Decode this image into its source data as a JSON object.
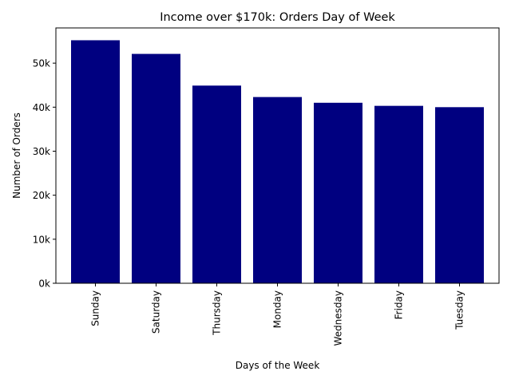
{
  "chart_data": {
    "type": "bar",
    "title": "Income over $170k: Orders Day of Week",
    "xlabel": "Days of the Week",
    "ylabel": "Number of Orders",
    "categories": [
      "Sunday",
      "Saturday",
      "Thursday",
      "Monday",
      "Wednesday",
      "Friday",
      "Tuesday"
    ],
    "values": [
      55200,
      52100,
      44900,
      42300,
      41000,
      40300,
      40000
    ],
    "ylim": [
      0,
      58000
    ],
    "yticks": [
      0,
      10000,
      20000,
      30000,
      40000,
      50000
    ],
    "ytick_labels": [
      "0k",
      "10k",
      "20k",
      "30k",
      "40k",
      "50k"
    ],
    "bar_color": "#000080",
    "grid": false,
    "legend": "none"
  }
}
